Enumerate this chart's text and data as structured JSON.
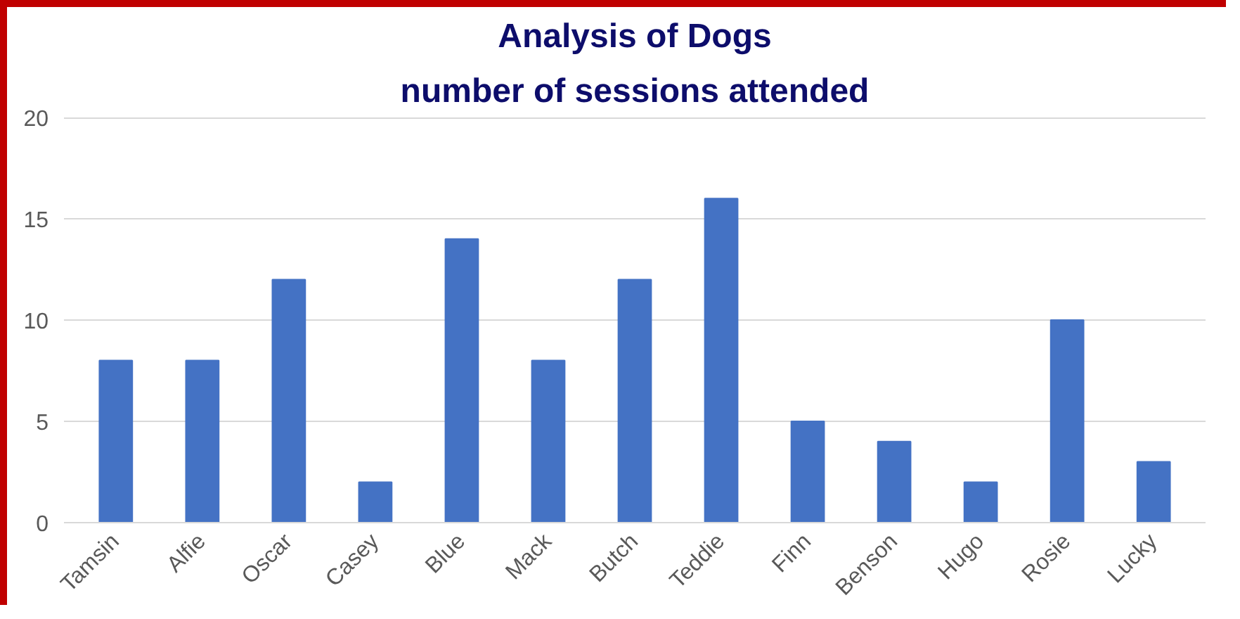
{
  "chart_data": {
    "type": "bar",
    "title": "Analysis of Dogs",
    "subtitle": "number of sessions attended",
    "categories": [
      "Tamsin",
      "Alfie",
      "Oscar",
      "Casey",
      "Blue",
      "Mack",
      "Butch",
      "Teddie",
      "Finn",
      "Benson",
      "Hugo",
      "Rosie",
      "Lucky"
    ],
    "values": [
      8,
      8,
      12,
      2,
      14,
      8,
      12,
      16,
      5,
      4,
      2,
      10,
      3
    ],
    "color": "#4472c4",
    "ylim": [
      0,
      20
    ],
    "yticks": [
      0,
      5,
      10,
      15,
      20
    ],
    "grid": "y"
  }
}
